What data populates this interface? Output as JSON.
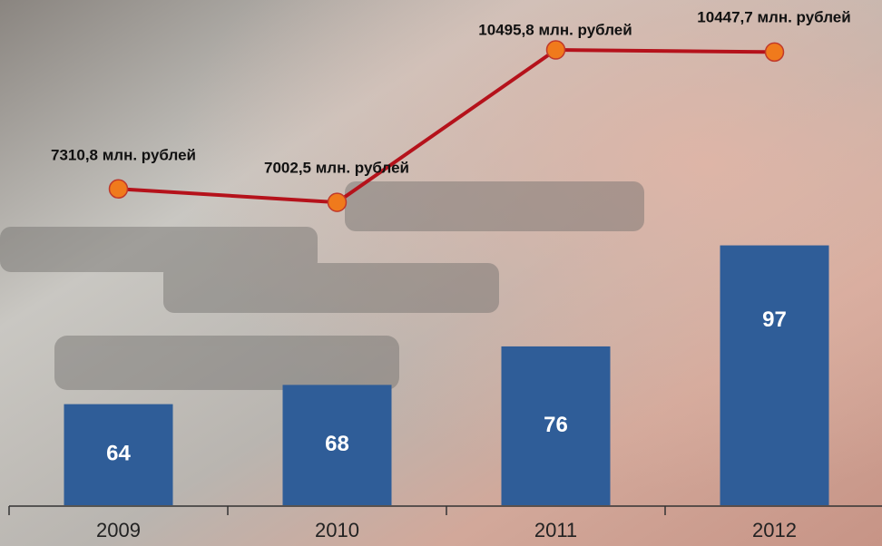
{
  "chart_data": {
    "type": "bar",
    "categories": [
      "2009",
      "2010",
      "2011",
      "2012"
    ],
    "values": [
      64,
      68,
      76,
      97
    ],
    "color": "#2f5d98",
    "ylim": [
      43,
      148
    ],
    "line": {
      "type": "line",
      "values": [
        7310.8,
        7002.5,
        10495.8,
        10447.7
      ],
      "value_labels": [
        "7310,8 млн. рублей",
        "7002,5 млн. рублей",
        "10495,8 млн. рублей",
        "10447,7 млн. рублей"
      ],
      "color": "#b5121b",
      "marker_color": "#f07a1c",
      "y2lim": [
        60,
        11640
      ]
    }
  }
}
